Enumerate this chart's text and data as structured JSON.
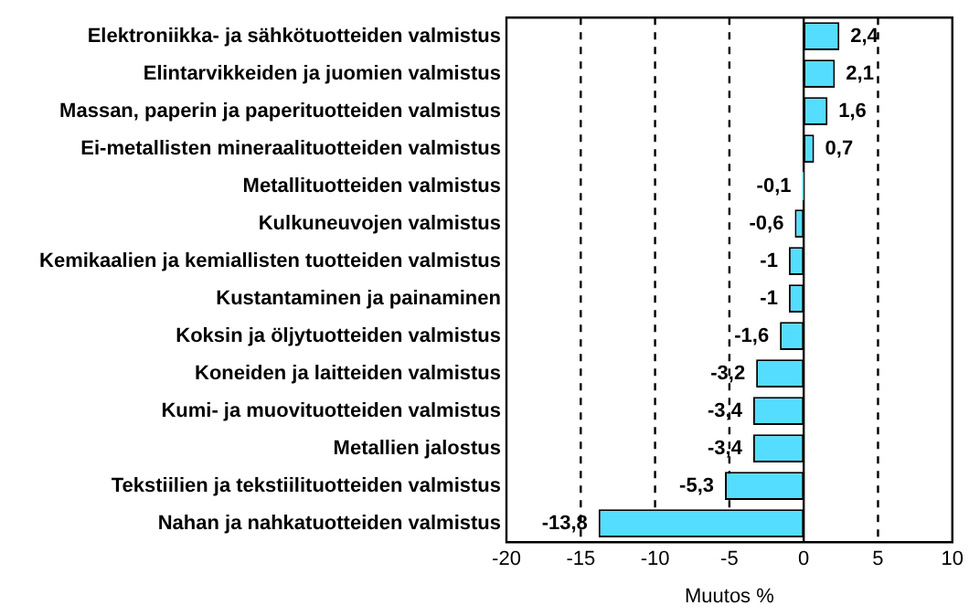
{
  "chart_data": {
    "type": "bar",
    "orientation": "horizontal",
    "xlabel": "Muutos %",
    "categories": [
      "Elektroniikka- ja sähkötuotteiden valmistus",
      "Elintarvikkeiden ja juomien valmistus",
      "Massan, paperin ja paperituotteiden valmistus",
      "Ei-metallisten mineraalituotteiden valmistus",
      "Metallituotteiden valmistus",
      "Kulkuneuvojen valmistus",
      "Kemikaalien ja kemiallisten tuotteiden valmistus",
      "Kustantaminen ja painaminen",
      "Koksin ja öljytuotteiden valmistus",
      "Koneiden ja laitteiden valmistus",
      "Kumi- ja muovituotteiden valmistus",
      "Metallien jalostus",
      "Tekstiilien ja tekstiilituotteiden valmistus",
      "Nahan ja nahkatuotteiden valmistus"
    ],
    "values": [
      2.4,
      2.1,
      1.6,
      0.7,
      -0.1,
      -0.6,
      -1,
      -1,
      -1.6,
      -3.2,
      -3.4,
      -3.4,
      -5.3,
      -13.8
    ],
    "value_labels": [
      "2,4",
      "2,1",
      "1,6",
      "0,7",
      "-0,1",
      "-0,6",
      "-1",
      "-1",
      "-1,6",
      "-3,2",
      "-3,4",
      "-3,4",
      "-5,3",
      "-13,8"
    ],
    "color": "#55ddff",
    "xlim": [
      -20,
      10
    ],
    "xticks": [
      -20,
      -15,
      -10,
      -5,
      0,
      5,
      10
    ],
    "grid": "x",
    "legend": false
  }
}
